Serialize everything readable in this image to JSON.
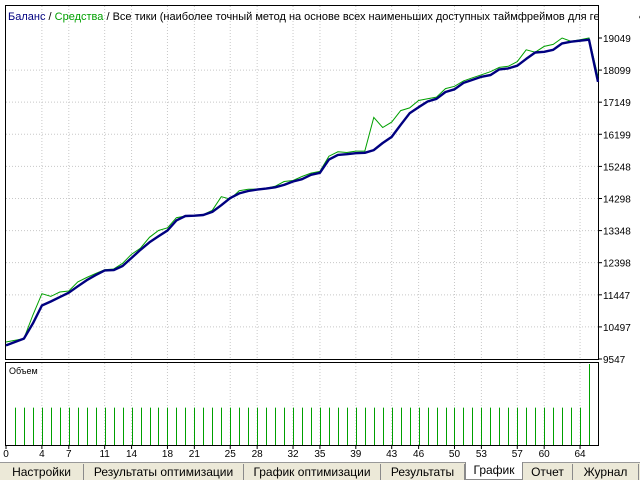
{
  "header": {
    "balance_label": "Баланс",
    "separator": "/",
    "equity_label": "Средства",
    "description": "Все тики (наиболее точный метод на основе всех наименьших доступных таймфреймов для генерации каждого тика)"
  },
  "volume_panel": {
    "label": "Объем"
  },
  "colors": {
    "balance": "#000080",
    "equity": "#00a000",
    "volume": "#00a000",
    "grid": "#c8c8c8"
  },
  "chart_data": {
    "type": "line",
    "y_ticks": [
      "19049",
      "18099",
      "17149",
      "16199",
      "15248",
      "14298",
      "13348",
      "12398",
      "11447",
      "10497",
      "9547"
    ],
    "x_ticks": [
      "0",
      "4",
      "7",
      "11",
      "14",
      "18",
      "21",
      "25",
      "28",
      "32",
      "35",
      "39",
      "43",
      "46",
      "50",
      "53",
      "57",
      "60",
      "64"
    ],
    "ylim": [
      9547,
      19049
    ],
    "xlim": [
      0,
      66
    ],
    "series": [
      {
        "name": "Баланс",
        "x": [
          0,
          2,
          3,
          4,
          5,
          6,
          7,
          8,
          9,
          10,
          11,
          12,
          13,
          14,
          15,
          16,
          17,
          18,
          19,
          20,
          21,
          22,
          23,
          24,
          25,
          26,
          27,
          28,
          29,
          30,
          31,
          32,
          33,
          34,
          35,
          36,
          37,
          38,
          39,
          40,
          41,
          42,
          43,
          44,
          45,
          46,
          47,
          48,
          49,
          50,
          51,
          52,
          53,
          54,
          55,
          56,
          57,
          58,
          59,
          60,
          61,
          62,
          63,
          64,
          65,
          66
        ],
        "values": [
          9950,
          10150,
          10600,
          11130,
          11250,
          11380,
          11510,
          11700,
          11880,
          12030,
          12170,
          12180,
          12300,
          12540,
          12780,
          13000,
          13180,
          13350,
          13650,
          13780,
          13790,
          13810,
          13900,
          14100,
          14310,
          14450,
          14520,
          14560,
          14590,
          14630,
          14700,
          14800,
          14870,
          15000,
          15060,
          15450,
          15590,
          15610,
          15640,
          15650,
          15730,
          15940,
          16120,
          16480,
          16820,
          17000,
          17170,
          17250,
          17450,
          17530,
          17720,
          17810,
          17900,
          17950,
          18120,
          18150,
          18230,
          18430,
          18620,
          18640,
          18700,
          18890,
          18940,
          18970,
          19000,
          17750
        ]
      },
      {
        "name": "Средства",
        "x": [
          0,
          2,
          3,
          4,
          5,
          6,
          7,
          8,
          9,
          10,
          11,
          12,
          13,
          14,
          15,
          16,
          17,
          18,
          19,
          20,
          21,
          22,
          23,
          24,
          25,
          26,
          27,
          28,
          29,
          30,
          31,
          32,
          33,
          34,
          35,
          36,
          37,
          38,
          39,
          40,
          41,
          42,
          43,
          44,
          45,
          46,
          47,
          48,
          49,
          50,
          51,
          52,
          53,
          54,
          55,
          56,
          57,
          58,
          59,
          60,
          61,
          62,
          63,
          64,
          65,
          66
        ],
        "values": [
          10050,
          10150,
          10850,
          11480,
          11400,
          11530,
          11560,
          11830,
          11960,
          12080,
          12190,
          12210,
          12380,
          12650,
          12830,
          13150,
          13350,
          13430,
          13730,
          13780,
          13790,
          13820,
          13950,
          14350,
          14280,
          14530,
          14570,
          14580,
          14600,
          14660,
          14800,
          14830,
          14950,
          15050,
          15100,
          15550,
          15680,
          15660,
          15700,
          15700,
          16700,
          16400,
          16560,
          16900,
          16980,
          17200,
          17250,
          17300,
          17550,
          17620,
          17780,
          17870,
          17960,
          18050,
          18180,
          18210,
          18350,
          18700,
          18630,
          18800,
          18860,
          19050,
          18950,
          19000,
          19050,
          17900
        ]
      }
    ],
    "volume": [
      0,
      6,
      6,
      6,
      6,
      6,
      6,
      6,
      6,
      6,
      6,
      6,
      6,
      6,
      6,
      6,
      6,
      6,
      6,
      6,
      6,
      6,
      6,
      6,
      6,
      6,
      6,
      6,
      6,
      6,
      6,
      6,
      6,
      6,
      6,
      6,
      6,
      6,
      6,
      6,
      6,
      6,
      6,
      6,
      6,
      6,
      6,
      6,
      6,
      6,
      6,
      6,
      6,
      6,
      6,
      6,
      6,
      6,
      6,
      6,
      6,
      6,
      6,
      6,
      6,
      13
    ],
    "volume_max": 13
  },
  "tabs": [
    {
      "label": "Настройки",
      "active": false
    },
    {
      "label": "Результаты оптимизации",
      "active": false
    },
    {
      "label": "График оптимизации",
      "active": false
    },
    {
      "label": "Результаты",
      "active": false
    },
    {
      "label": "График",
      "active": true
    },
    {
      "label": "Отчет",
      "active": false
    },
    {
      "label": "Журнал",
      "active": false
    }
  ]
}
